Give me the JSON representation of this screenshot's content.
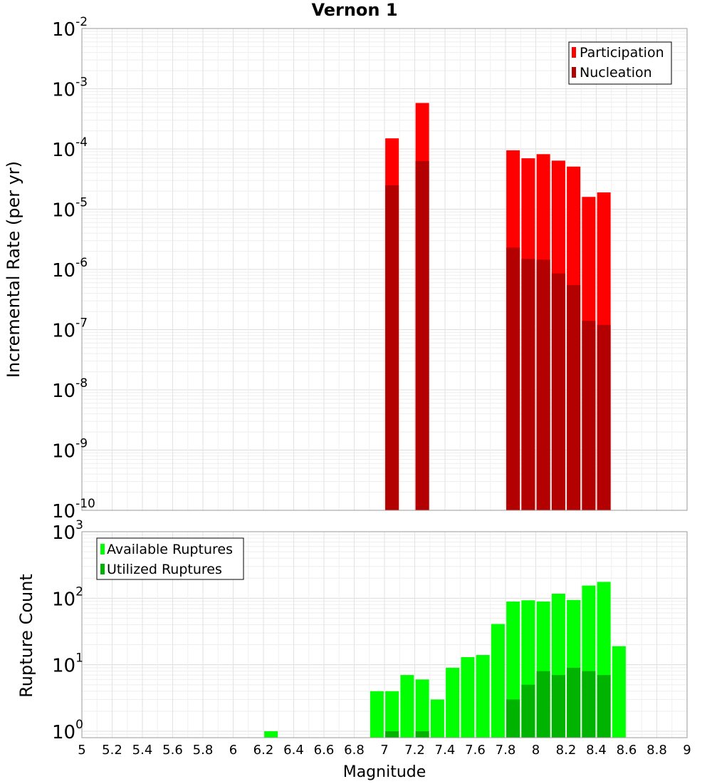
{
  "chart_data": [
    {
      "type": "bar",
      "scale": "log",
      "title": "Vernon 1",
      "xlabel": "",
      "ylabel": "Incremental Rate (per yr)",
      "xlim": [
        5,
        9
      ],
      "ylim": [
        1e-10,
        0.01
      ],
      "ytick_labels": [
        "10^-10",
        "10^-9",
        "10^-8",
        "10^-7",
        "10^-6",
        "10^-5",
        "10^-4",
        "10^-3",
        "10^-2"
      ],
      "legend": [
        "Participation",
        "Nucleation"
      ],
      "legend_position": "top-right",
      "colors": {
        "Participation": "#ff0000",
        "Nucleation": "#b30000"
      },
      "x": [
        7.05,
        7.25,
        7.85,
        7.95,
        8.05,
        8.15,
        8.25,
        8.35,
        8.45
      ],
      "series": [
        {
          "name": "Participation",
          "values": [
            0.00015,
            0.00058,
            9.5e-05,
            7e-05,
            8.2e-05,
            6.4e-05,
            5.1e-05,
            1.6e-05,
            1.9e-05
          ]
        },
        {
          "name": "Nucleation",
          "values": [
            2.5e-05,
            6.3e-05,
            2.3e-06,
            1.5e-06,
            1.45e-06,
            8.6e-07,
            5.5e-07,
            1.4e-07,
            1.2e-07
          ]
        }
      ]
    },
    {
      "type": "bar",
      "scale": "log",
      "title": "",
      "xlabel": "Magnitude",
      "ylabel": "Rupture Count",
      "xlim": [
        5,
        9
      ],
      "ylim": [
        0.8,
        1000
      ],
      "ytick_labels": [
        "10^0",
        "10^1",
        "10^2",
        "10^3"
      ],
      "xtick_labels": [
        "5",
        "5.2",
        "5.4",
        "5.6",
        "5.8",
        "6",
        "6.2",
        "6.4",
        "6.6",
        "6.8",
        "7",
        "7.2",
        "7.4",
        "7.6",
        "7.8",
        "8",
        "8.2",
        "8.4",
        "8.6",
        "8.8",
        "9"
      ],
      "legend": [
        "Available Ruptures",
        "Utilized Ruptures"
      ],
      "legend_position": "top-left",
      "colors": {
        "Available Ruptures": "#00ff00",
        "Utilized Ruptures": "#00b300"
      },
      "x": [
        6.25,
        6.95,
        7.05,
        7.15,
        7.25,
        7.35,
        7.45,
        7.55,
        7.65,
        7.75,
        7.85,
        7.95,
        8.05,
        8.15,
        8.25,
        8.35,
        8.45,
        8.55
      ],
      "series": [
        {
          "name": "Available Ruptures",
          "values": [
            1,
            4,
            4,
            7,
            6,
            3,
            9,
            13,
            14,
            41,
            89,
            93,
            89,
            117,
            94,
            155,
            176,
            19
          ]
        },
        {
          "name": "Utilized Ruptures",
          "values": [
            0,
            0,
            1,
            0,
            1,
            0,
            0,
            0,
            0,
            0,
            3,
            5,
            8,
            7,
            9,
            8,
            7,
            0
          ]
        }
      ]
    }
  ]
}
